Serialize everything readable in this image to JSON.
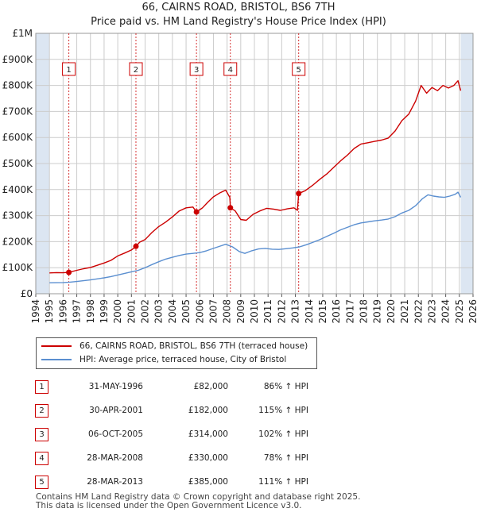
{
  "title_line1": "66, CAIRNS ROAD, BRISTOL, BS6 7TH",
  "title_line2": "Price paid vs. HM Land Registry's House Price Index (HPI)",
  "colors": {
    "property": "#cc0000",
    "hpi": "#5b8fd0",
    "shade": "#dce6f2",
    "grid": "#cccccc"
  },
  "chart_data": {
    "type": "line",
    "xlim": [
      1994,
      2026
    ],
    "ylim": [
      0,
      1000000
    ],
    "y_ticks": [
      {
        "value": 0,
        "label": "£0"
      },
      {
        "value": 100000,
        "label": "£100K"
      },
      {
        "value": 200000,
        "label": "£200K"
      },
      {
        "value": 300000,
        "label": "£300K"
      },
      {
        "value": 400000,
        "label": "£400K"
      },
      {
        "value": 500000,
        "label": "£500K"
      },
      {
        "value": 600000,
        "label": "£600K"
      },
      {
        "value": 700000,
        "label": "£700K"
      },
      {
        "value": 800000,
        "label": "£800K"
      },
      {
        "value": 900000,
        "label": "£900K"
      },
      {
        "value": 1000000,
        "label": "£1M"
      }
    ],
    "x_ticks": [
      "1994",
      "1995",
      "1996",
      "1997",
      "1998",
      "1999",
      "2000",
      "2001",
      "2002",
      "2003",
      "2004",
      "2005",
      "2006",
      "2007",
      "2008",
      "2009",
      "2010",
      "2011",
      "2012",
      "2013",
      "2014",
      "2015",
      "2016",
      "2017",
      "2018",
      "2019",
      "2020",
      "2021",
      "2022",
      "2023",
      "2024",
      "2025",
      "2026"
    ],
    "shaded_ranges": [
      [
        1994,
        1995
      ],
      [
        2025.1,
        2026
      ]
    ],
    "series": [
      {
        "name": "66, CAIRNS ROAD, BRISTOL, BS6 7TH (terraced house)",
        "color": "#cc0000",
        "points": [
          [
            1995.0,
            80000
          ],
          [
            1995.5,
            81000
          ],
          [
            1996.0,
            80500
          ],
          [
            1996.42,
            82000
          ],
          [
            1997.0,
            90000
          ],
          [
            1997.5,
            96000
          ],
          [
            1998.0,
            101000
          ],
          [
            1998.5,
            109000
          ],
          [
            1999.0,
            118000
          ],
          [
            1999.5,
            128000
          ],
          [
            2000.0,
            145000
          ],
          [
            2000.5,
            156000
          ],
          [
            2001.0,
            168000
          ],
          [
            2001.33,
            182000
          ],
          [
            2001.6,
            198000
          ],
          [
            2002.0,
            208000
          ],
          [
            2002.5,
            235000
          ],
          [
            2003.0,
            258000
          ],
          [
            2003.5,
            275000
          ],
          [
            2004.0,
            295000
          ],
          [
            2004.5,
            318000
          ],
          [
            2005.0,
            330000
          ],
          [
            2005.5,
            333000
          ],
          [
            2005.76,
            314000
          ],
          [
            2006.2,
            330000
          ],
          [
            2006.6,
            352000
          ],
          [
            2007.0,
            372000
          ],
          [
            2007.5,
            388000
          ],
          [
            2007.9,
            398000
          ],
          [
            2008.2,
            370000
          ],
          [
            2008.24,
            330000
          ],
          [
            2008.6,
            318000
          ],
          [
            2009.0,
            285000
          ],
          [
            2009.4,
            282000
          ],
          [
            2009.9,
            305000
          ],
          [
            2010.4,
            318000
          ],
          [
            2010.9,
            328000
          ],
          [
            2011.4,
            325000
          ],
          [
            2011.9,
            320000
          ],
          [
            2012.4,
            326000
          ],
          [
            2012.9,
            330000
          ],
          [
            2013.15,
            320000
          ],
          [
            2013.24,
            385000
          ],
          [
            2013.7,
            395000
          ],
          [
            2014.3,
            418000
          ],
          [
            2014.8,
            440000
          ],
          [
            2015.3,
            460000
          ],
          [
            2015.8,
            485000
          ],
          [
            2016.3,
            510000
          ],
          [
            2016.8,
            532000
          ],
          [
            2017.3,
            558000
          ],
          [
            2017.8,
            575000
          ],
          [
            2018.3,
            580000
          ],
          [
            2018.8,
            585000
          ],
          [
            2019.3,
            590000
          ],
          [
            2019.8,
            598000
          ],
          [
            2020.3,
            625000
          ],
          [
            2020.8,
            665000
          ],
          [
            2021.3,
            690000
          ],
          [
            2021.8,
            740000
          ],
          [
            2022.2,
            800000
          ],
          [
            2022.6,
            770000
          ],
          [
            2023.0,
            792000
          ],
          [
            2023.4,
            780000
          ],
          [
            2023.8,
            800000
          ],
          [
            2024.2,
            790000
          ],
          [
            2024.6,
            800000
          ],
          [
            2024.9,
            818000
          ],
          [
            2025.1,
            780000
          ]
        ]
      },
      {
        "name": "HPI: Average price, terraced house, City of Bristol",
        "color": "#5b8fd0",
        "points": [
          [
            1995.0,
            42000
          ],
          [
            1995.5,
            42500
          ],
          [
            1996.0,
            43000
          ],
          [
            1996.5,
            44500
          ],
          [
            1997.0,
            47000
          ],
          [
            1997.5,
            50000
          ],
          [
            1998.0,
            53000
          ],
          [
            1998.5,
            57000
          ],
          [
            1999.0,
            61000
          ],
          [
            1999.5,
            66000
          ],
          [
            2000.0,
            72000
          ],
          [
            2000.5,
            78000
          ],
          [
            2001.0,
            84000
          ],
          [
            2001.5,
            90000
          ],
          [
            2002.0,
            100000
          ],
          [
            2002.5,
            112000
          ],
          [
            2003.0,
            123000
          ],
          [
            2003.5,
            133000
          ],
          [
            2004.0,
            140000
          ],
          [
            2004.5,
            147000
          ],
          [
            2005.0,
            152000
          ],
          [
            2005.5,
            155000
          ],
          [
            2006.0,
            158000
          ],
          [
            2006.5,
            165000
          ],
          [
            2007.0,
            174000
          ],
          [
            2007.5,
            183000
          ],
          [
            2007.9,
            190000
          ],
          [
            2008.4,
            180000
          ],
          [
            2008.9,
            162000
          ],
          [
            2009.3,
            155000
          ],
          [
            2009.8,
            165000
          ],
          [
            2010.3,
            172000
          ],
          [
            2010.8,
            174000
          ],
          [
            2011.3,
            171000
          ],
          [
            2011.8,
            170000
          ],
          [
            2012.3,
            173000
          ],
          [
            2012.8,
            176000
          ],
          [
            2013.3,
            180000
          ],
          [
            2013.8,
            188000
          ],
          [
            2014.3,
            198000
          ],
          [
            2014.8,
            208000
          ],
          [
            2015.3,
            220000
          ],
          [
            2015.8,
            232000
          ],
          [
            2016.3,
            245000
          ],
          [
            2016.8,
            255000
          ],
          [
            2017.3,
            265000
          ],
          [
            2017.8,
            272000
          ],
          [
            2018.3,
            276000
          ],
          [
            2018.8,
            280000
          ],
          [
            2019.3,
            283000
          ],
          [
            2019.8,
            287000
          ],
          [
            2020.3,
            296000
          ],
          [
            2020.8,
            310000
          ],
          [
            2021.3,
            320000
          ],
          [
            2021.8,
            338000
          ],
          [
            2022.3,
            365000
          ],
          [
            2022.7,
            380000
          ],
          [
            2023.1,
            375000
          ],
          [
            2023.5,
            372000
          ],
          [
            2023.9,
            370000
          ],
          [
            2024.3,
            375000
          ],
          [
            2024.7,
            382000
          ],
          [
            2024.9,
            390000
          ],
          [
            2025.1,
            370000
          ]
        ]
      }
    ],
    "sales": [
      {
        "num": "1",
        "date": "31-MAY-1996",
        "year": 1996.42,
        "price_value": 82000,
        "price": "£82,000",
        "hpi": "86% ↑ HPI"
      },
      {
        "num": "2",
        "date": "30-APR-2001",
        "year": 2001.33,
        "price_value": 182000,
        "price": "£182,000",
        "hpi": "115% ↑ HPI"
      },
      {
        "num": "3",
        "date": "06-OCT-2005",
        "year": 2005.76,
        "price_value": 314000,
        "price": "£314,000",
        "hpi": "102% ↑ HPI"
      },
      {
        "num": "4",
        "date": "28-MAR-2008",
        "year": 2008.24,
        "price_value": 330000,
        "price": "£330,000",
        "hpi": "78% ↑ HPI"
      },
      {
        "num": "5",
        "date": "28-MAR-2013",
        "year": 2013.24,
        "price_value": 385000,
        "price": "£385,000",
        "hpi": "111% ↑ HPI"
      }
    ]
  },
  "legend": {
    "property_label": "66, CAIRNS ROAD, BRISTOL, BS6 7TH (terraced house)",
    "hpi_label": "HPI: Average price, terraced house, City of Bristol"
  },
  "footer_line1": "Contains HM Land Registry data © Crown copyright and database right 2025.",
  "footer_line2": "This data is licensed under the Open Government Licence v3.0."
}
